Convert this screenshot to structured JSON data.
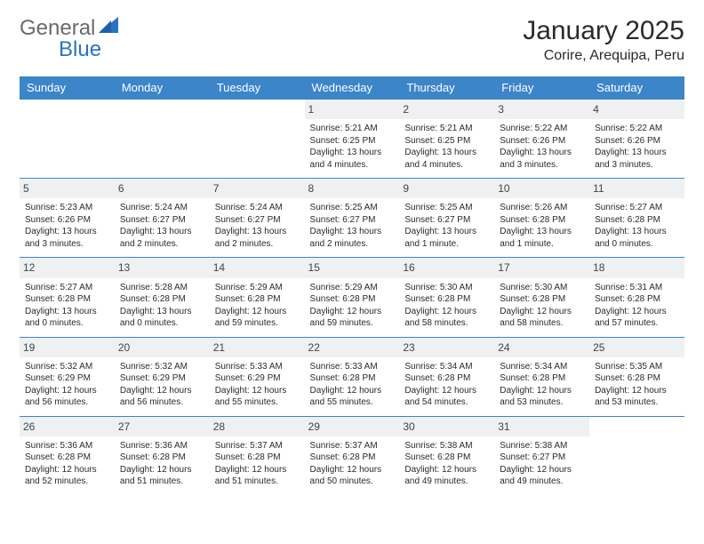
{
  "logo": {
    "text1": "General",
    "text2": "Blue"
  },
  "header": {
    "title": "January 2025",
    "subtitle": "Corire, Arequipa, Peru"
  },
  "colors": {
    "header_bg": "#3b85c8",
    "header_fg": "#ffffff",
    "row_border": "#3b85c8",
    "daynum_bg": "#eef0f2",
    "logo_gray": "#6a6a6a",
    "logo_blue": "#2a72c0",
    "page_bg": "#ffffff"
  },
  "daynames": [
    "Sunday",
    "Monday",
    "Tuesday",
    "Wednesday",
    "Thursday",
    "Friday",
    "Saturday"
  ],
  "weeks": [
    [
      {
        "n": "",
        "lines": []
      },
      {
        "n": "",
        "lines": []
      },
      {
        "n": "",
        "lines": []
      },
      {
        "n": "1",
        "lines": [
          "Sunrise: 5:21 AM",
          "Sunset: 6:25 PM",
          "Daylight: 13 hours",
          "and 4 minutes."
        ]
      },
      {
        "n": "2",
        "lines": [
          "Sunrise: 5:21 AM",
          "Sunset: 6:25 PM",
          "Daylight: 13 hours",
          "and 4 minutes."
        ]
      },
      {
        "n": "3",
        "lines": [
          "Sunrise: 5:22 AM",
          "Sunset: 6:26 PM",
          "Daylight: 13 hours",
          "and 3 minutes."
        ]
      },
      {
        "n": "4",
        "lines": [
          "Sunrise: 5:22 AM",
          "Sunset: 6:26 PM",
          "Daylight: 13 hours",
          "and 3 minutes."
        ]
      }
    ],
    [
      {
        "n": "5",
        "lines": [
          "Sunrise: 5:23 AM",
          "Sunset: 6:26 PM",
          "Daylight: 13 hours",
          "and 3 minutes."
        ]
      },
      {
        "n": "6",
        "lines": [
          "Sunrise: 5:24 AM",
          "Sunset: 6:27 PM",
          "Daylight: 13 hours",
          "and 2 minutes."
        ]
      },
      {
        "n": "7",
        "lines": [
          "Sunrise: 5:24 AM",
          "Sunset: 6:27 PM",
          "Daylight: 13 hours",
          "and 2 minutes."
        ]
      },
      {
        "n": "8",
        "lines": [
          "Sunrise: 5:25 AM",
          "Sunset: 6:27 PM",
          "Daylight: 13 hours",
          "and 2 minutes."
        ]
      },
      {
        "n": "9",
        "lines": [
          "Sunrise: 5:25 AM",
          "Sunset: 6:27 PM",
          "Daylight: 13 hours",
          "and 1 minute."
        ]
      },
      {
        "n": "10",
        "lines": [
          "Sunrise: 5:26 AM",
          "Sunset: 6:28 PM",
          "Daylight: 13 hours",
          "and 1 minute."
        ]
      },
      {
        "n": "11",
        "lines": [
          "Sunrise: 5:27 AM",
          "Sunset: 6:28 PM",
          "Daylight: 13 hours",
          "and 0 minutes."
        ]
      }
    ],
    [
      {
        "n": "12",
        "lines": [
          "Sunrise: 5:27 AM",
          "Sunset: 6:28 PM",
          "Daylight: 13 hours",
          "and 0 minutes."
        ]
      },
      {
        "n": "13",
        "lines": [
          "Sunrise: 5:28 AM",
          "Sunset: 6:28 PM",
          "Daylight: 13 hours",
          "and 0 minutes."
        ]
      },
      {
        "n": "14",
        "lines": [
          "Sunrise: 5:29 AM",
          "Sunset: 6:28 PM",
          "Daylight: 12 hours",
          "and 59 minutes."
        ]
      },
      {
        "n": "15",
        "lines": [
          "Sunrise: 5:29 AM",
          "Sunset: 6:28 PM",
          "Daylight: 12 hours",
          "and 59 minutes."
        ]
      },
      {
        "n": "16",
        "lines": [
          "Sunrise: 5:30 AM",
          "Sunset: 6:28 PM",
          "Daylight: 12 hours",
          "and 58 minutes."
        ]
      },
      {
        "n": "17",
        "lines": [
          "Sunrise: 5:30 AM",
          "Sunset: 6:28 PM",
          "Daylight: 12 hours",
          "and 58 minutes."
        ]
      },
      {
        "n": "18",
        "lines": [
          "Sunrise: 5:31 AM",
          "Sunset: 6:28 PM",
          "Daylight: 12 hours",
          "and 57 minutes."
        ]
      }
    ],
    [
      {
        "n": "19",
        "lines": [
          "Sunrise: 5:32 AM",
          "Sunset: 6:29 PM",
          "Daylight: 12 hours",
          "and 56 minutes."
        ]
      },
      {
        "n": "20",
        "lines": [
          "Sunrise: 5:32 AM",
          "Sunset: 6:29 PM",
          "Daylight: 12 hours",
          "and 56 minutes."
        ]
      },
      {
        "n": "21",
        "lines": [
          "Sunrise: 5:33 AM",
          "Sunset: 6:29 PM",
          "Daylight: 12 hours",
          "and 55 minutes."
        ]
      },
      {
        "n": "22",
        "lines": [
          "Sunrise: 5:33 AM",
          "Sunset: 6:28 PM",
          "Daylight: 12 hours",
          "and 55 minutes."
        ]
      },
      {
        "n": "23",
        "lines": [
          "Sunrise: 5:34 AM",
          "Sunset: 6:28 PM",
          "Daylight: 12 hours",
          "and 54 minutes."
        ]
      },
      {
        "n": "24",
        "lines": [
          "Sunrise: 5:34 AM",
          "Sunset: 6:28 PM",
          "Daylight: 12 hours",
          "and 53 minutes."
        ]
      },
      {
        "n": "25",
        "lines": [
          "Sunrise: 5:35 AM",
          "Sunset: 6:28 PM",
          "Daylight: 12 hours",
          "and 53 minutes."
        ]
      }
    ],
    [
      {
        "n": "26",
        "lines": [
          "Sunrise: 5:36 AM",
          "Sunset: 6:28 PM",
          "Daylight: 12 hours",
          "and 52 minutes."
        ]
      },
      {
        "n": "27",
        "lines": [
          "Sunrise: 5:36 AM",
          "Sunset: 6:28 PM",
          "Daylight: 12 hours",
          "and 51 minutes."
        ]
      },
      {
        "n": "28",
        "lines": [
          "Sunrise: 5:37 AM",
          "Sunset: 6:28 PM",
          "Daylight: 12 hours",
          "and 51 minutes."
        ]
      },
      {
        "n": "29",
        "lines": [
          "Sunrise: 5:37 AM",
          "Sunset: 6:28 PM",
          "Daylight: 12 hours",
          "and 50 minutes."
        ]
      },
      {
        "n": "30",
        "lines": [
          "Sunrise: 5:38 AM",
          "Sunset: 6:28 PM",
          "Daylight: 12 hours",
          "and 49 minutes."
        ]
      },
      {
        "n": "31",
        "lines": [
          "Sunrise: 5:38 AM",
          "Sunset: 6:27 PM",
          "Daylight: 12 hours",
          "and 49 minutes."
        ]
      },
      {
        "n": "",
        "lines": []
      }
    ]
  ]
}
